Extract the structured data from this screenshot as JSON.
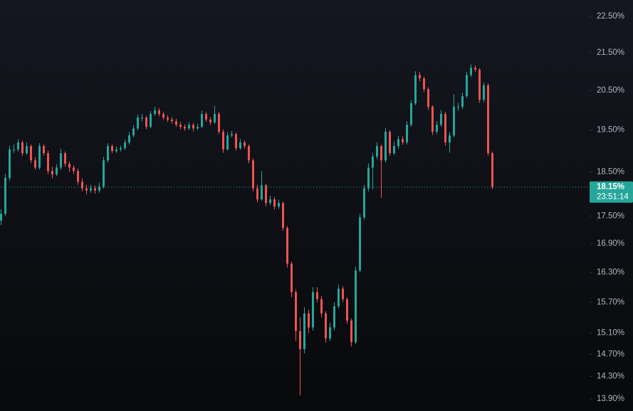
{
  "chart_data": {
    "type": "candlestick",
    "log_scale": true,
    "up_color": "#26a69a",
    "down_color": "#ef5350",
    "ylim": [
      13.69,
      22.97
    ],
    "yticks": [
      {
        "value": 22.5,
        "label": "22.50%"
      },
      {
        "value": 21.5,
        "label": "21.50%"
      },
      {
        "value": 20.5,
        "label": "20.50%"
      },
      {
        "value": 19.5,
        "label": "19.50%"
      },
      {
        "value": 18.5,
        "label": "18.50%"
      },
      {
        "value": 17.5,
        "label": "17.50%"
      },
      {
        "value": 16.9,
        "label": "16.90%"
      },
      {
        "value": 16.3,
        "label": "16.30%"
      },
      {
        "value": 15.7,
        "label": "15.70%"
      },
      {
        "value": 15.1,
        "label": "15.10%"
      },
      {
        "value": 14.7,
        "label": "14.70%"
      },
      {
        "value": 14.3,
        "label": "14.30%"
      },
      {
        "value": 13.9,
        "label": "13.90%"
      }
    ],
    "last_price": {
      "value": 18.15,
      "label": "18.15%"
    },
    "countdown": "23:51:14",
    "open": [
      17.4,
      17.55,
      18.36,
      19.03,
      19.03,
      19.2,
      18.94,
      19.11,
      18.77,
      18.6,
      19.11,
      18.94,
      18.52,
      18.44,
      18.6,
      18.94,
      18.69,
      18.6,
      18.52,
      18.27,
      18.12,
      18.07,
      18.12,
      18.07,
      18.16,
      18.77,
      19.11,
      18.99,
      19.03,
      19.06,
      19.2,
      19.37,
      19.54,
      19.81,
      19.81,
      19.58,
      19.9,
      19.99,
      19.9,
      19.81,
      19.76,
      19.72,
      19.63,
      19.58,
      19.54,
      19.63,
      19.54,
      19.58,
      19.9,
      19.76,
      19.69,
      19.9,
      19.46,
      19.03,
      19.37,
      19.4,
      19.06,
      19.2,
      19.11,
      18.77,
      18.12,
      17.87,
      18.19,
      17.79,
      17.87,
      17.71,
      17.79,
      17.24,
      16.48,
      15.9,
      15.14,
      14.8,
      15.48,
      15.21,
      15.9,
      15.76,
      15.48,
      15.0,
      15.21,
      15.62,
      15.97,
      15.76,
      15.34,
      14.93,
      16.34,
      17.47,
      18.12,
      18.6,
      18.86,
      19.11,
      18.77,
      19.46,
      18.94,
      19.11,
      19.28,
      19.2,
      19.63,
      20.17,
      20.9,
      20.81,
      20.53,
      20.08,
      19.46,
      19.63,
      19.9,
      19.2,
      19.37,
      20.08,
      20.08,
      20.35,
      20.9,
      21.09,
      21.04,
      20.26,
      20.63,
      18.94
    ],
    "high": [
      17.65,
      18.45,
      19.12,
      19.15,
      19.28,
      19.25,
      19.2,
      19.15,
      18.85,
      19.18,
      19.15,
      19.0,
      18.62,
      18.68,
      19.05,
      18.98,
      18.75,
      18.66,
      18.58,
      18.35,
      18.2,
      18.2,
      18.18,
      18.25,
      18.85,
      19.18,
      19.15,
      19.1,
      19.12,
      19.27,
      19.45,
      19.62,
      19.88,
      19.9,
      19.85,
      19.97,
      20.08,
      20.05,
      19.95,
      19.87,
      19.82,
      19.78,
      19.7,
      19.64,
      19.7,
      19.68,
      19.66,
      19.98,
      19.95,
      19.82,
      20.1,
      19.95,
      19.52,
      19.45,
      19.48,
      19.44,
      19.28,
      19.25,
      19.15,
      18.82,
      18.2,
      18.52,
      18.22,
      17.95,
      17.92,
      17.86,
      17.82,
      17.28,
      16.52,
      15.95,
      15.4,
      15.6,
      15.55,
      16.0,
      16.0,
      15.82,
      15.52,
      15.3,
      15.7,
      16.05,
      16.02,
      15.8,
      15.38,
      16.42,
      17.55,
      18.2,
      18.7,
      18.95,
      19.2,
      19.15,
      19.55,
      19.5,
      19.22,
      19.36,
      19.35,
      19.72,
      20.25,
      21.0,
      20.98,
      20.86,
      20.58,
      20.12,
      19.72,
      20.0,
      19.95,
      19.45,
      20.4,
      20.18,
      20.44,
      20.98,
      21.18,
      21.15,
      21.08,
      20.7,
      20.68,
      18.98
    ],
    "low": [
      17.3,
      17.5,
      18.3,
      18.95,
      18.98,
      18.88,
      18.9,
      18.7,
      18.55,
      18.55,
      18.88,
      18.45,
      18.35,
      18.4,
      18.55,
      18.62,
      18.5,
      18.45,
      18.2,
      18.05,
      17.98,
      18.02,
      18.0,
      18.02,
      18.12,
      18.72,
      18.94,
      18.95,
      18.98,
      19.02,
      19.15,
      19.32,
      19.5,
      19.72,
      19.52,
      19.55,
      19.85,
      19.84,
      19.75,
      19.7,
      19.66,
      19.58,
      19.52,
      19.48,
      19.5,
      19.47,
      19.5,
      19.55,
      19.7,
      19.62,
      19.65,
      19.4,
      18.95,
      19.0,
      19.32,
      19.0,
      19.02,
      19.05,
      18.7,
      18.05,
      17.8,
      17.84,
      17.72,
      17.74,
      17.64,
      17.66,
      17.18,
      16.4,
      15.8,
      14.95,
      13.96,
      14.72,
      15.1,
      15.15,
      15.7,
      15.4,
      14.92,
      14.95,
      15.15,
      15.58,
      15.7,
      15.28,
      14.85,
      14.9,
      16.3,
      17.42,
      18.05,
      18.1,
      18.8,
      17.9,
      18.72,
      18.88,
      18.9,
      19.05,
      19.14,
      19.15,
      19.58,
      20.12,
      20.74,
      20.46,
      20.0,
      19.38,
      19.4,
      19.58,
      19.12,
      18.95,
      19.32,
      19.98,
      20.02,
      20.3,
      20.85,
      20.98,
      20.18,
      20.2,
      18.88,
      18.1
    ],
    "close": [
      17.55,
      18.36,
      19.03,
      19.03,
      19.2,
      18.94,
      19.11,
      18.77,
      18.6,
      19.11,
      18.94,
      18.52,
      18.44,
      18.6,
      18.94,
      18.69,
      18.6,
      18.52,
      18.27,
      18.12,
      18.07,
      18.12,
      18.07,
      18.16,
      18.77,
      19.11,
      18.99,
      19.03,
      19.06,
      19.2,
      19.37,
      19.54,
      19.81,
      19.81,
      19.58,
      19.9,
      19.99,
      19.9,
      19.81,
      19.76,
      19.72,
      19.63,
      19.58,
      19.54,
      19.63,
      19.54,
      19.58,
      19.9,
      19.76,
      19.69,
      19.9,
      19.46,
      19.03,
      19.37,
      19.4,
      19.06,
      19.2,
      19.11,
      18.77,
      18.12,
      17.87,
      18.19,
      17.79,
      17.87,
      17.71,
      17.79,
      17.24,
      16.48,
      15.9,
      15.14,
      14.8,
      15.48,
      15.21,
      15.9,
      15.76,
      15.48,
      15.0,
      15.21,
      15.62,
      15.97,
      15.76,
      15.34,
      14.93,
      16.34,
      17.47,
      18.12,
      18.6,
      18.86,
      19.11,
      18.77,
      19.46,
      18.94,
      19.11,
      19.28,
      19.2,
      19.63,
      20.17,
      20.9,
      20.81,
      20.53,
      20.08,
      19.46,
      19.63,
      19.9,
      19.2,
      19.37,
      20.08,
      20.08,
      20.35,
      20.9,
      21.09,
      21.04,
      20.26,
      20.63,
      18.94,
      18.15
    ]
  }
}
